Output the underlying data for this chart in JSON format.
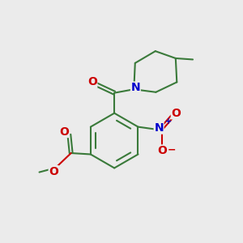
{
  "background_color": "#ebebeb",
  "bond_color": "#3a7a3a",
  "bond_width": 1.5,
  "atom_colors": {
    "O": "#cc0000",
    "N": "#0000cc",
    "C": "#000000"
  },
  "figsize": [
    3.0,
    3.0
  ],
  "dpi": 100
}
